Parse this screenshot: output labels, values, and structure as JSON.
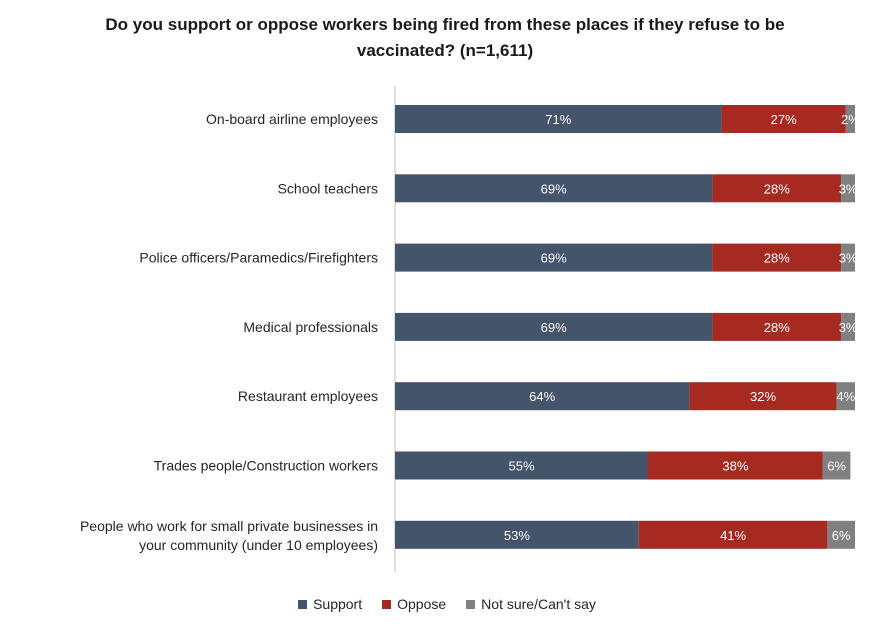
{
  "chart_data": {
    "type": "bar",
    "orientation": "horizontal",
    "stacked": true,
    "title": "Do you support or oppose workers being fired from these places if they refuse to be vaccinated? (n=1,611)",
    "categories": [
      "On-board airline employees",
      "School teachers",
      "Police officers/Paramedics/Firefighters",
      "Medical professionals",
      "Restaurant employees",
      "Trades people/Construction workers",
      "People who work for small private businesses in your community (under 10 employees)"
    ],
    "series": [
      {
        "name": "Support",
        "color": "#44546a",
        "values": [
          71,
          69,
          69,
          69,
          64,
          55,
          53
        ],
        "labels": [
          "71%",
          "69%",
          "69%",
          "69%",
          "64%",
          "55%",
          "53%"
        ]
      },
      {
        "name": "Oppose",
        "color": "#a52a22",
        "values": [
          27,
          28,
          28,
          28,
          32,
          38,
          41
        ],
        "labels": [
          "27%",
          "28%",
          "28%",
          "28%",
          "32%",
          "38%",
          "41%"
        ]
      },
      {
        "name": "Not sure/Can't say",
        "color": "#808080",
        "values": [
          2,
          3,
          3,
          3,
          4,
          6,
          6
        ],
        "labels": [
          "2%",
          "3%",
          "3%",
          "3%",
          "4%",
          "6%",
          "6%"
        ]
      }
    ],
    "xlim": [
      0,
      100
    ],
    "legend_position": "bottom",
    "grid": false
  }
}
